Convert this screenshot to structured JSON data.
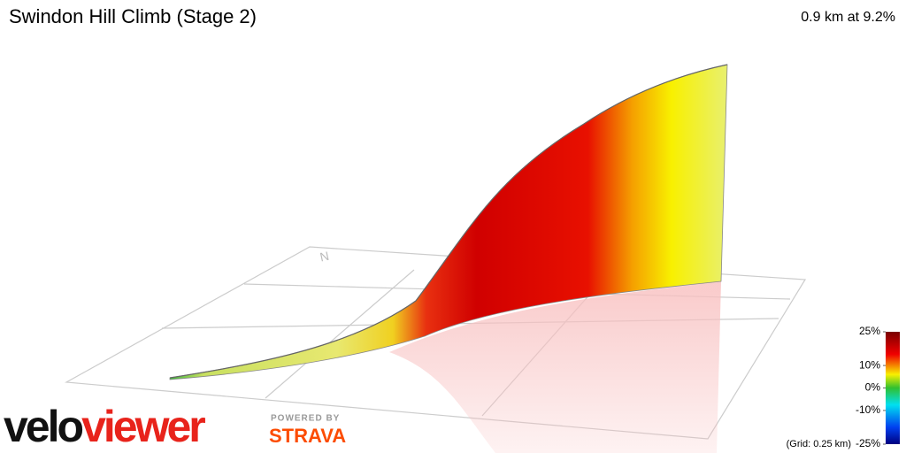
{
  "header": {
    "title": "Swindon Hill Climb (Stage 2)",
    "summary": "0.9 km at 9.2%"
  },
  "compass": "N",
  "gradient_legend": {
    "ticks": [
      {
        "value": 25,
        "label": "25%"
      },
      {
        "value": 10,
        "label": "10%"
      },
      {
        "value": 0,
        "label": "0%"
      },
      {
        "value": -10,
        "label": "-10%"
      },
      {
        "value": -25,
        "label": "-25%"
      }
    ],
    "grid_note": "(Grid: 0.25 km)"
  },
  "branding": {
    "logo_dark": "velo",
    "logo_red": "viewer",
    "powered_by": "POWERED BY",
    "partner": "STRAVA"
  }
}
